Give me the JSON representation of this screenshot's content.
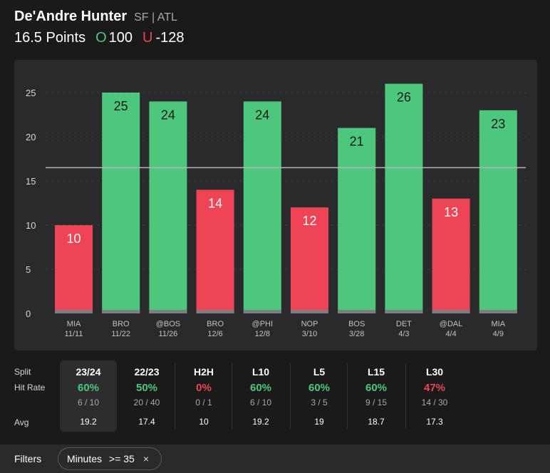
{
  "header": {
    "player_name": "De'Andre Hunter",
    "player_meta": "SF | ATL",
    "line_label": "16.5 Points",
    "over_prefix": "O",
    "over_odds": "100",
    "under_prefix": "U",
    "under_odds": "-128"
  },
  "colors": {
    "over": "#4ec77e",
    "under": "#ef4456",
    "background": "#1a1a1b",
    "panel": "#2a2a2c"
  },
  "chart_data": {
    "type": "bar",
    "line": 16.5,
    "ylim": [
      0,
      27
    ],
    "yticks": [
      0,
      5,
      10,
      15,
      20,
      25
    ],
    "categories": [
      {
        "opp": "MIA",
        "date": "11/11"
      },
      {
        "opp": "BRO",
        "date": "11/22"
      },
      {
        "opp": "@BOS",
        "date": "11/26"
      },
      {
        "opp": "BRO",
        "date": "12/6"
      },
      {
        "opp": "@PHI",
        "date": "12/8"
      },
      {
        "opp": "NOP",
        "date": "3/10"
      },
      {
        "opp": "BOS",
        "date": "3/28"
      },
      {
        "opp": "DET",
        "date": "4/3"
      },
      {
        "opp": "@DAL",
        "date": "4/4"
      },
      {
        "opp": "MIA",
        "date": "4/9"
      }
    ],
    "values": [
      10,
      25,
      24,
      14,
      24,
      12,
      21,
      26,
      13,
      23
    ],
    "bar_colors": [
      "under",
      "over",
      "over",
      "under",
      "over",
      "under",
      "over",
      "over",
      "under",
      "over"
    ],
    "grid": true
  },
  "splits": {
    "labels": {
      "split": "Split",
      "hit_rate": "Hit Rate",
      "avg": "Avg"
    },
    "columns": [
      {
        "name": "23/24",
        "pct": "60%",
        "frac": "6 / 10",
        "avg": "19.2",
        "status": "over",
        "active": true
      },
      {
        "name": "22/23",
        "pct": "50%",
        "frac": "20 / 40",
        "avg": "17.4",
        "status": "over",
        "active": false
      },
      {
        "name": "H2H",
        "pct": "0%",
        "frac": "0 / 1",
        "avg": "10",
        "status": "under",
        "active": false
      },
      {
        "name": "L10",
        "pct": "60%",
        "frac": "6 / 10",
        "avg": "19.2",
        "status": "over",
        "active": false
      },
      {
        "name": "L5",
        "pct": "60%",
        "frac": "3 / 5",
        "avg": "19",
        "status": "over",
        "active": false
      },
      {
        "name": "L15",
        "pct": "60%",
        "frac": "9 / 15",
        "avg": "18.7",
        "status": "over",
        "active": false
      },
      {
        "name": "L30",
        "pct": "47%",
        "frac": "14 / 30",
        "avg": "17.3",
        "status": "under",
        "active": false
      }
    ]
  },
  "filters": {
    "label": "Filters",
    "chip_name": "Minutes",
    "chip_value": ">= 35",
    "chip_close": "×"
  }
}
